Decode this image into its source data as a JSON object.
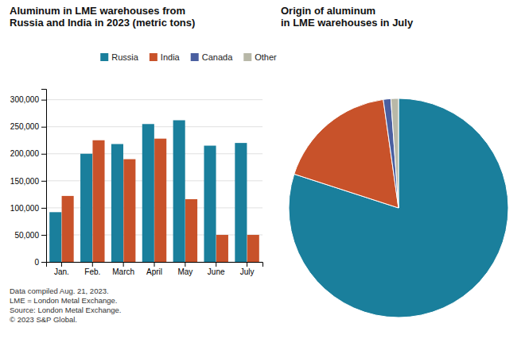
{
  "chart_data": [
    {
      "type": "bar",
      "title": "Aluminum in LME warehouses from\nRussia and India in 2023 (metric tons)",
      "categories": [
        "Jan.",
        "Feb.",
        "March",
        "April",
        "May",
        "June",
        "July"
      ],
      "series": [
        {
          "name": "Russia",
          "color": "#1a7f9c",
          "values": [
            92000,
            200000,
            218000,
            255000,
            262000,
            215000,
            220000
          ]
        },
        {
          "name": "India",
          "color": "#c8522a",
          "values": [
            122000,
            225000,
            190000,
            228000,
            116000,
            50000,
            50000
          ]
        }
      ],
      "ylim": [
        0,
        320000
      ],
      "yticks": [
        0,
        {
          "value": 50000,
          "label": "50,000"
        },
        {
          "value": 100000,
          "label": "100,000"
        },
        {
          "value": 150000,
          "label": "150,000"
        },
        {
          "value": 200000,
          "label": "200,000"
        },
        {
          "value": 250000,
          "label": "250,000"
        },
        {
          "value": 300000,
          "label": "300,000"
        }
      ],
      "grid": true,
      "annotations": [
        "Data compiled Aug. 21, 2023.",
        "LME = London Metal Exchange.",
        "Source: London Metal Exchange.",
        "© 2023 S&P Global."
      ]
    },
    {
      "type": "pie",
      "title": "Origin of aluminum\nin LME warehouses in July",
      "categories": [
        "Russia",
        "India",
        "Canada",
        "Other"
      ],
      "values": [
        72,
        16,
        1,
        1
      ],
      "colors": [
        "#1a7f9c",
        "#c8522a",
        "#4a5fa0",
        "#b8b8a8"
      ],
      "legend": "top"
    }
  ]
}
